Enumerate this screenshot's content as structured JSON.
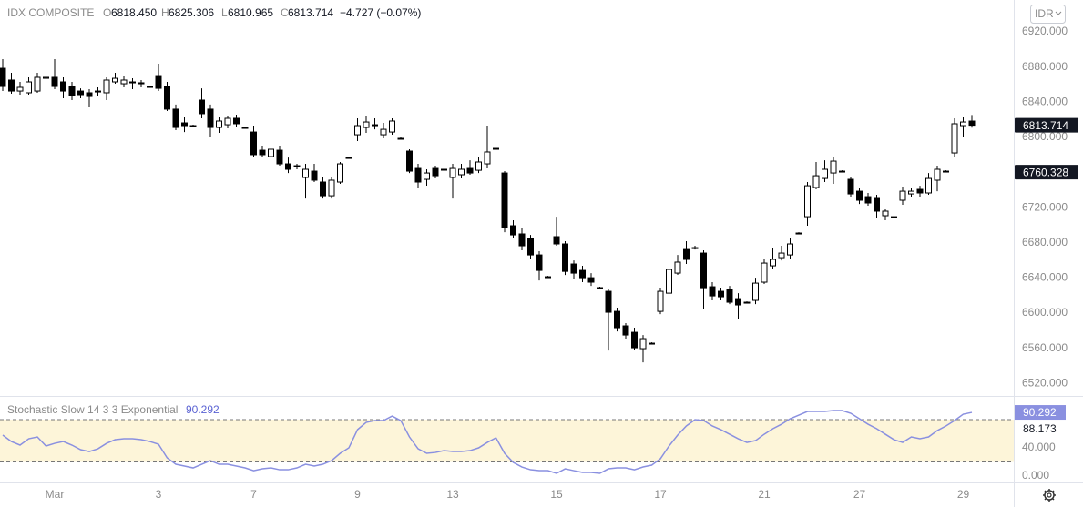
{
  "header": {
    "symbol": "IDX COMPOSITE",
    "o_label": "O",
    "open": "6818.450",
    "h_label": "H",
    "high": "6825.306",
    "l_label": "L",
    "low": "6810.965",
    "c_label": "C",
    "close": "6813.714",
    "change": "−4.727 (−0.07%)"
  },
  "currency": "IDR",
  "chart_data": [
    {
      "type": "candlestick",
      "categories": [
        null,
        null,
        null,
        null,
        null,
        null,
        "Mar",
        null,
        null,
        null,
        null,
        null,
        null,
        null,
        null,
        null,
        null,
        null,
        "3",
        null,
        null,
        null,
        null,
        null,
        null,
        null,
        null,
        null,
        null,
        "7",
        null,
        null,
        null,
        null,
        null,
        null,
        null,
        null,
        null,
        null,
        null,
        "9",
        null,
        null,
        null,
        null,
        null,
        null,
        null,
        null,
        null,
        null,
        "13",
        null,
        null,
        null,
        null,
        null,
        null,
        null,
        null,
        null,
        null,
        null,
        "15",
        null,
        null,
        null,
        null,
        null,
        null,
        null,
        null,
        null,
        null,
        null,
        "17",
        null,
        null,
        null,
        null,
        null,
        null,
        null,
        null,
        null,
        null,
        null,
        "21",
        null,
        null,
        null,
        null,
        null,
        null,
        null,
        null,
        null,
        null,
        "27",
        null,
        null,
        null,
        null,
        null,
        null,
        null,
        null,
        null,
        null,
        null,
        "29",
        null
      ],
      "open": [
        6878.5,
        6865.1,
        6852.6,
        6850.6,
        6852.6,
        6867.1,
        6868.2,
        6863.0,
        6857.8,
        6852.6,
        6850.6,
        6851.6,
        6850.6,
        6863.0,
        6860.9,
        6863.0,
        6862.0,
        6857.8,
        6870.2,
        6857.8,
        6832.0,
        6816.4,
        6813.3,
        6842.3,
        6832.0,
        6811.2,
        6814.3,
        6821.6,
        6811.2,
        6806.0,
        6785.3,
        6778.1,
        6785.3,
        6769.8,
        6767.7,
        6754.3,
        6761.5,
        6749.1,
        6733.5,
        6749.1,
        6777.0,
        6802.9,
        6811.2,
        6813.3,
        6802.9,
        6806.0,
        6798.8,
        6784.3,
        6764.6,
        6752.2,
        6764.6,
        6763.6,
        6754.3,
        6757.4,
        6764.6,
        6762.5,
        6769.8,
        6787.4,
        6759.4,
        6699.4,
        6690.1,
        6684.9,
        6666.2,
        6641.4,
        6687.0,
        6678.7,
        6655.9,
        6648.6,
        6640.3,
        6629.0,
        6624.8,
        6602.0,
        6585.5,
        6578.2,
        6559.6,
        6565.8,
        6602.0,
        6622.7,
        6645.5,
        6672.4,
        6674.5,
        6668.3,
        6630.0,
        6624.8,
        6626.9,
        6616.5,
        6612.4,
        6614.5,
        6635.2,
        6653.8,
        6663.1,
        6666.2,
        6691.1,
        6709.7,
        6742.9,
        6753.2,
        6759.4,
        6761.5,
        6752.2,
        6738.7,
        6732.5,
        6731.5,
        6710.8,
        6709.7,
        6728.4,
        6735.6,
        6740.8,
        6736.7,
        6751.2,
        6761.5,
        6782.2,
        6813.3,
        6818.45
      ],
      "high": [
        6888.9,
        6873.4,
        6863.0,
        6868.2,
        6873.4,
        6873.4,
        6888.9,
        6868.2,
        6863.0,
        6855.7,
        6854.7,
        6856.8,
        6868.2,
        6873.4,
        6869.2,
        6867.1,
        6865.1,
        6858.9,
        6883.7,
        6863.0,
        6837.2,
        6823.6,
        6814.3,
        6855.7,
        6837.2,
        6823.6,
        6824.7,
        6825.7,
        6812.2,
        6813.3,
        6790.5,
        6792.6,
        6790.5,
        6777.0,
        6769.8,
        6769.8,
        6769.8,
        6754.3,
        6754.3,
        6771.9,
        6778.1,
        6821.6,
        6824.7,
        6821.6,
        6816.4,
        6821.6,
        6799.8,
        6786.4,
        6769.8,
        6763.6,
        6767.7,
        6764.6,
        6769.8,
        6769.8,
        6773.9,
        6778.1,
        6813.3,
        6788.4,
        6761.5,
        6705.6,
        6697.3,
        6689.0,
        6670.4,
        6642.4,
        6709.7,
        6681.8,
        6660.0,
        6653.8,
        6645.5,
        6630.0,
        6626.9,
        6606.2,
        6588.6,
        6583.4,
        6575.1,
        6566.8,
        6629.0,
        6655.9,
        6666.2,
        6681.8,
        6676.6,
        6671.4,
        6635.2,
        6629.0,
        6631.0,
        6622.7,
        6613.4,
        6640.3,
        6661.1,
        6674.5,
        6676.6,
        6684.9,
        6692.1,
        6749.1,
        6771.9,
        6773.9,
        6778.1,
        6762.5,
        6755.3,
        6742.9,
        6736.7,
        6734.6,
        6718.0,
        6710.8,
        6743.9,
        6742.9,
        6744.9,
        6759.4,
        6767.7,
        6762.5,
        6821.6,
        6823.6,
        6825.306
      ],
      "low": [
        6852.6,
        6849.5,
        6848.5,
        6848.5,
        6850.6,
        6847.5,
        6854.7,
        6844.4,
        6842.3,
        6844.4,
        6834.0,
        6846.4,
        6842.3,
        6860.9,
        6856.8,
        6854.7,
        6856.8,
        6856.8,
        6852.6,
        6829.9,
        6808.2,
        6806.0,
        6812.3,
        6821.6,
        6800.9,
        6805.0,
        6810.2,
        6811.2,
        6810.2,
        6778.1,
        6778.1,
        6771.9,
        6767.7,
        6759.4,
        6763.6,
        6730.4,
        6749.1,
        6730.4,
        6730.4,
        6747.0,
        6776.0,
        6795.7,
        6805.0,
        6809.1,
        6798.8,
        6802.9,
        6797.8,
        6759.4,
        6742.9,
        6745.0,
        6753.2,
        6762.6,
        6730.4,
        6753.2,
        6757.4,
        6759.4,
        6764.6,
        6786.4,
        6692.1,
        6684.9,
        6671.4,
        6661.1,
        6637.2,
        6640.3,
        6676.6,
        6643.4,
        6639.3,
        6635.2,
        6631.0,
        6628.0,
        6557.5,
        6579.2,
        6571.0,
        6558.5,
        6544.0,
        6564.7,
        6598.9,
        6614.5,
        6643.5,
        6655.9,
        6672.4,
        6604.1,
        6614.5,
        6614.5,
        6610.3,
        6593.7,
        6611.4,
        6610.3,
        6633.1,
        6650.7,
        6660.0,
        6662.1,
        6690.1,
        6699.4,
        6740.8,
        6749.1,
        6747.0,
        6760.5,
        6732.5,
        6724.2,
        6722.2,
        6707.7,
        6705.6,
        6708.7,
        6723.2,
        6732.5,
        6732.5,
        6734.6,
        6738.7,
        6760.5,
        6778.1,
        6800.9,
        6810.965
      ],
      "close": [
        6857.8,
        6852.6,
        6856.8,
        6863.0,
        6868.2,
        6868.2,
        6857.8,
        6852.6,
        6847.5,
        6848.5,
        6846.4,
        6852.6,
        6865.1,
        6867.1,
        6865.1,
        6862.0,
        6860.9,
        6857.8,
        6855.7,
        6832.0,
        6811.2,
        6813.3,
        6813.3,
        6826.8,
        6811.2,
        6818.5,
        6821.6,
        6815.4,
        6811.2,
        6780.2,
        6780.2,
        6786.4,
        6769.8,
        6763.6,
        6766.7,
        6763.6,
        6751.2,
        6733.5,
        6751.2,
        6769.8,
        6777.0,
        6813.3,
        6817.4,
        6814.3,
        6809.1,
        6818.5,
        6798.8,
        6761.5,
        6749.1,
        6759.4,
        6756.3,
        6763.6,
        6764.6,
        6763.6,
        6759.4,
        6771.9,
        6783.3,
        6787.4,
        6697.3,
        6689.0,
        6676.6,
        6666.2,
        6648.6,
        6641.4,
        6678.7,
        6647.5,
        6645.5,
        6640.3,
        6635.2,
        6629.0,
        6601.0,
        6583.4,
        6575.1,
        6560.6,
        6571.0,
        6565.8,
        6624.8,
        6649.7,
        6658.0,
        6661.1,
        6674.5,
        6628.9,
        6619.6,
        6618.6,
        6612.4,
        6609.3,
        6612.4,
        6634.1,
        6656.9,
        6661.1,
        6668.3,
        6678.7,
        6691.1,
        6744.9,
        6756.3,
        6763.6,
        6772.9,
        6761.5,
        6735.6,
        6728.4,
        6725.3,
        6716.0,
        6716.0,
        6709.7,
        6738.7,
        6738.7,
        6736.7,
        6753.2,
        6763.6,
        6761.5,
        6815.4,
        6817.4,
        6813.714
      ],
      "up_color": "#ffffff",
      "down_color": "#000000",
      "wick_color": "#000000",
      "ylim": [
        6505.8,
        6956.2
      ],
      "yticks": [
        {
          "value": 6520,
          "label": "6520.000"
        },
        {
          "value": 6560,
          "label": "6560.000"
        },
        {
          "value": 6600,
          "label": "6600.000"
        },
        {
          "value": 6640,
          "label": "6640.000"
        },
        {
          "value": 6680,
          "label": "6680.000"
        },
        {
          "value": 6720,
          "label": "6720.000"
        },
        {
          "value": 6760,
          "label": "6760.000"
        },
        {
          "value": 6800,
          "label": "6800.000"
        },
        {
          "value": 6840,
          "label": "6840.000"
        },
        {
          "value": 6880,
          "label": "6880.000"
        },
        {
          "value": 6920,
          "label": "6920.000"
        }
      ],
      "last_price": 6813.714,
      "price_line": 6760.328,
      "grid": false
    },
    {
      "type": "line",
      "series": [
        {
          "name": "Stochastic Slow 14 3 3 Exponential",
          "color": "#8a90e0",
          "values": [
            58.1,
            49.0,
            43.9,
            52.9,
            55.5,
            42.6,
            46.4,
            49.0,
            43.9,
            37.4,
            34.8,
            38.7,
            46.4,
            51.6,
            52.9,
            52.9,
            51.6,
            49.0,
            45.2,
            25.8,
            16.8,
            14.2,
            11.6,
            16.8,
            21.9,
            16.8,
            16.8,
            14.2,
            11.6,
            7.7,
            10.3,
            11.6,
            9.0,
            9.0,
            11.6,
            16.8,
            14.2,
            16.8,
            21.9,
            32.3,
            40.0,
            65.8,
            76.1,
            78.7,
            78.7,
            85.1,
            78.7,
            55.5,
            38.7,
            32.3,
            33.5,
            36.1,
            34.8,
            34.8,
            36.1,
            40.0,
            47.7,
            54.2,
            32.3,
            19.4,
            12.9,
            9.0,
            7.7,
            7.7,
            3.9,
            10.3,
            7.7,
            5.2,
            5.2,
            3.9,
            10.3,
            11.6,
            11.6,
            9.0,
            12.9,
            15.5,
            24.5,
            42.6,
            58.1,
            71.0,
            80.0,
            78.7,
            71.0,
            65.8,
            59.3,
            52.9,
            47.7,
            50.3,
            59.3,
            67.1,
            73.5,
            81.3,
            86.4,
            91.6,
            91.6,
            91.6,
            92.9,
            92.9,
            89.0,
            81.3,
            73.5,
            67.1,
            59.3,
            51.6,
            47.7,
            55.5,
            52.9,
            55.5,
            64.5,
            71.0,
            78.7,
            87.7,
            90.292
          ]
        }
      ],
      "d_value": 88.173,
      "band": [
        20,
        80
      ],
      "band_color": "#fdf5d9",
      "ylim": [
        -9,
        111
      ],
      "yticks": [
        {
          "value": 0,
          "label": "0.000"
        },
        {
          "value": 40,
          "label": "40.000"
        }
      ]
    }
  ]
}
